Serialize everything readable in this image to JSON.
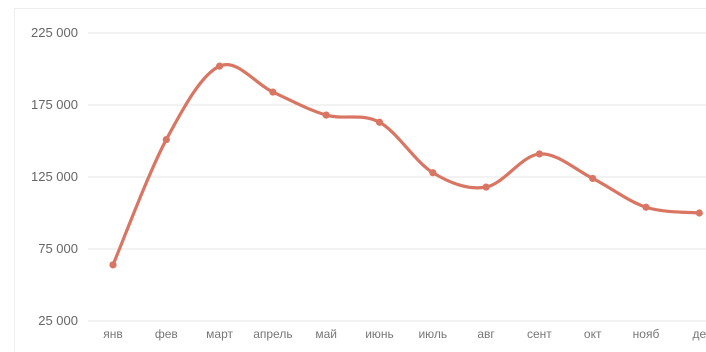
{
  "chart_data": {
    "type": "line",
    "title": "",
    "xlabel": "",
    "ylabel": "",
    "categories": [
      "янв",
      "фев",
      "март",
      "апрель",
      "май",
      "июнь",
      "июль",
      "авг",
      "сент",
      "окт",
      "нояб",
      "де"
    ],
    "series": [
      {
        "values": [
          64000,
          151000,
          202000,
          184000,
          168000,
          163000,
          128000,
          118000,
          141000,
          124000,
          104000,
          100000
        ]
      }
    ],
    "ylim": [
      25000,
      225000
    ],
    "yticks": [
      25000,
      75000,
      125000,
      175000,
      225000
    ],
    "ytick_labels": [
      "25 000",
      "75 000",
      "125 000",
      "175 000",
      "225 000"
    ],
    "grid": true,
    "legend": "none",
    "line_color": "#D97563",
    "smooth": true
  }
}
